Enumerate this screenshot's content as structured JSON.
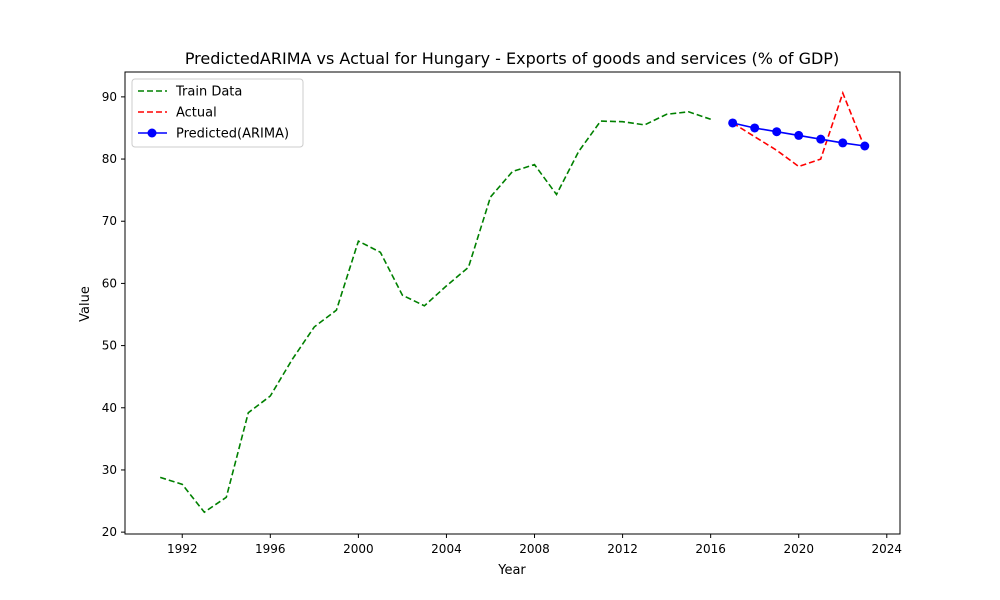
{
  "chart_data": {
    "type": "line",
    "title": "PredictedARIMA vs Actual for Hungary - Exports of goods and services (% of GDP)",
    "xlabel": "Year",
    "ylabel": "Value",
    "xlim": [
      1989.4,
      2024.6
    ],
    "ylim": [
      19.7,
      94.0
    ],
    "xticks": [
      1992,
      1996,
      2000,
      2004,
      2008,
      2012,
      2016,
      2020,
      2024
    ],
    "yticks": [
      20,
      30,
      40,
      50,
      60,
      70,
      80,
      90
    ],
    "legend_position": "top-left",
    "grid": false,
    "series": [
      {
        "name": "Train Data",
        "color": "#008000",
        "style": "dashed",
        "marker": "none",
        "x": [
          1991,
          1992,
          1993,
          1994,
          1995,
          1996,
          1997,
          1998,
          1999,
          2000,
          2001,
          2002,
          2003,
          2004,
          2005,
          2006,
          2007,
          2008,
          2009,
          2010,
          2011,
          2012,
          2013,
          2014,
          2015,
          2016
        ],
        "y": [
          28.8,
          27.7,
          23.2,
          25.6,
          39.2,
          41.9,
          47.8,
          53.0,
          55.7,
          66.8,
          65.0,
          58.1,
          56.4,
          59.6,
          62.6,
          73.9,
          78.0,
          79.1,
          74.3,
          81.2,
          86.1,
          86.0,
          85.5,
          87.2,
          87.6,
          86.4
        ]
      },
      {
        "name": "Actual",
        "color": "#ff0000",
        "style": "dashed",
        "marker": "none",
        "x": [
          2017,
          2018,
          2019,
          2020,
          2021,
          2022,
          2023
        ],
        "y": [
          85.8,
          83.6,
          81.4,
          78.8,
          80.0,
          90.6,
          81.8
        ]
      },
      {
        "name": "Predicted(ARIMA)",
        "color": "#0000ff",
        "style": "solid",
        "marker": "circle",
        "x": [
          2017,
          2018,
          2019,
          2020,
          2021,
          2022,
          2023
        ],
        "y": [
          85.8,
          85.0,
          84.4,
          83.8,
          83.2,
          82.6,
          82.1
        ]
      }
    ]
  }
}
